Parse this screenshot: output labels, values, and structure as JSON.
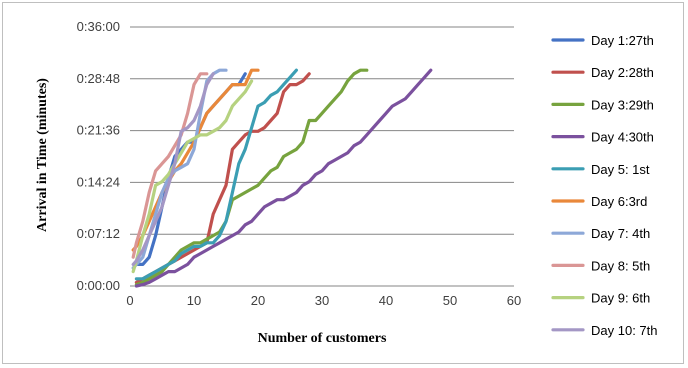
{
  "chart_data": {
    "type": "line",
    "title": "",
    "xlabel": "Number  of customers",
    "ylabel": "Arrival  in Time  (minutes)",
    "xlim": [
      0,
      60
    ],
    "xticks": [
      0,
      10,
      20,
      30,
      40,
      50,
      60
    ],
    "ylim_minutes": [
      0,
      36
    ],
    "yticks": [
      "0:00:00",
      "0:07:12",
      "0:14:24",
      "0:21:36",
      "0:28:48",
      "0:36:00"
    ],
    "y_unit": "minutes (h:mm:ss on axis)",
    "grid": "horizontal",
    "legend_position": "right",
    "series": [
      {
        "name": "Day 1:27th",
        "color": "#4472C4",
        "points": [
          [
            1,
            3
          ],
          [
            2,
            3
          ],
          [
            3,
            4
          ],
          [
            4,
            7
          ],
          [
            5,
            11
          ],
          [
            6,
            15
          ],
          [
            7,
            18
          ],
          [
            8,
            19
          ],
          [
            9,
            20
          ],
          [
            10,
            20
          ],
          [
            11,
            22
          ],
          [
            12,
            24
          ],
          [
            13,
            25
          ],
          [
            14,
            26
          ],
          [
            15,
            27
          ],
          [
            16,
            28
          ],
          [
            17,
            28
          ],
          [
            18,
            29.5
          ]
        ]
      },
      {
        "name": "Day 2:28th",
        "color": "#C0504D",
        "points": [
          [
            1,
            0.5
          ],
          [
            2,
            1
          ],
          [
            3,
            1.5
          ],
          [
            4,
            2
          ],
          [
            5,
            2.5
          ],
          [
            6,
            3
          ],
          [
            7,
            3.5
          ],
          [
            8,
            4
          ],
          [
            9,
            4.5
          ],
          [
            10,
            5
          ],
          [
            11,
            5.5
          ],
          [
            12,
            6
          ],
          [
            13,
            10
          ],
          [
            14,
            12
          ],
          [
            15,
            14
          ],
          [
            16,
            19
          ],
          [
            17,
            20
          ],
          [
            18,
            21
          ],
          [
            19,
            21.5
          ],
          [
            20,
            21.5
          ],
          [
            21,
            22
          ],
          [
            22,
            23
          ],
          [
            23,
            24
          ],
          [
            24,
            27
          ],
          [
            25,
            28
          ],
          [
            26,
            28
          ],
          [
            27,
            28.5
          ],
          [
            28,
            29.5
          ]
        ]
      },
      {
        "name": "Day 3:29th",
        "color": "#77A33E",
        "points": [
          [
            1,
            0.2
          ],
          [
            2,
            0.5
          ],
          [
            3,
            1
          ],
          [
            4,
            1.5
          ],
          [
            5,
            2
          ],
          [
            6,
            3
          ],
          [
            7,
            4
          ],
          [
            8,
            5
          ],
          [
            9,
            5.5
          ],
          [
            10,
            6
          ],
          [
            11,
            6
          ],
          [
            12,
            6.5
          ],
          [
            13,
            7
          ],
          [
            14,
            7.5
          ],
          [
            15,
            9
          ],
          [
            16,
            12
          ],
          [
            17,
            12.5
          ],
          [
            18,
            13
          ],
          [
            19,
            13.5
          ],
          [
            20,
            14
          ],
          [
            21,
            15
          ],
          [
            22,
            16
          ],
          [
            23,
            16.5
          ],
          [
            24,
            18
          ],
          [
            25,
            18.5
          ],
          [
            26,
            19
          ],
          [
            27,
            20
          ],
          [
            28,
            23
          ],
          [
            29,
            23
          ],
          [
            30,
            24
          ],
          [
            31,
            25
          ],
          [
            32,
            26
          ],
          [
            33,
            27
          ],
          [
            34,
            28.5
          ],
          [
            35,
            29.5
          ],
          [
            36,
            30
          ],
          [
            37,
            30
          ]
        ]
      },
      {
        "name": "Day 4:30th",
        "color": "#7B519E",
        "points": [
          [
            1,
            0
          ],
          [
            2,
            0.2
          ],
          [
            3,
            0.5
          ],
          [
            4,
            1
          ],
          [
            5,
            1.5
          ],
          [
            6,
            2
          ],
          [
            7,
            2
          ],
          [
            8,
            2.5
          ],
          [
            9,
            3
          ],
          [
            10,
            4
          ],
          [
            11,
            4.5
          ],
          [
            12,
            5
          ],
          [
            13,
            5.5
          ],
          [
            14,
            6
          ],
          [
            15,
            6.5
          ],
          [
            16,
            7
          ],
          [
            17,
            7.5
          ],
          [
            18,
            8.5
          ],
          [
            19,
            9
          ],
          [
            20,
            10
          ],
          [
            21,
            11
          ],
          [
            22,
            11.5
          ],
          [
            23,
            12
          ],
          [
            24,
            12
          ],
          [
            25,
            12.5
          ],
          [
            26,
            13
          ],
          [
            27,
            14
          ],
          [
            28,
            14.5
          ],
          [
            29,
            15.5
          ],
          [
            30,
            16
          ],
          [
            31,
            17
          ],
          [
            32,
            17.5
          ],
          [
            33,
            18
          ],
          [
            34,
            18.5
          ],
          [
            35,
            19.5
          ],
          [
            36,
            20
          ],
          [
            37,
            21
          ],
          [
            38,
            22
          ],
          [
            39,
            23
          ],
          [
            40,
            24
          ],
          [
            41,
            25
          ],
          [
            42,
            25.5
          ],
          [
            43,
            26
          ],
          [
            44,
            27
          ],
          [
            45,
            28
          ],
          [
            46,
            29
          ],
          [
            47,
            30
          ]
        ]
      },
      {
        "name": "Day 5: 1st",
        "color": "#3B9EB3",
        "points": [
          [
            1,
            1
          ],
          [
            2,
            1
          ],
          [
            3,
            1.5
          ],
          [
            4,
            2
          ],
          [
            5,
            2.5
          ],
          [
            6,
            3
          ],
          [
            7,
            3.5
          ],
          [
            8,
            4.5
          ],
          [
            9,
            5
          ],
          [
            10,
            5.5
          ],
          [
            11,
            5.5
          ],
          [
            12,
            6
          ],
          [
            13,
            6
          ],
          [
            14,
            7
          ],
          [
            15,
            9
          ],
          [
            16,
            13
          ],
          [
            17,
            17
          ],
          [
            18,
            19
          ],
          [
            19,
            22
          ],
          [
            20,
            25
          ],
          [
            21,
            25.5
          ],
          [
            22,
            26.5
          ],
          [
            23,
            27
          ],
          [
            24,
            28
          ],
          [
            25,
            29
          ],
          [
            26,
            30
          ]
        ]
      },
      {
        "name": "Day 6:3rd",
        "color": "#E9883A",
        "points": [
          [
            0.5,
            5
          ],
          [
            1,
            5.5
          ],
          [
            2,
            7
          ],
          [
            3,
            9
          ],
          [
            4,
            11
          ],
          [
            5,
            13
          ],
          [
            6,
            14.5
          ],
          [
            7,
            16
          ],
          [
            8,
            17
          ],
          [
            9,
            18.5
          ],
          [
            10,
            20
          ],
          [
            11,
            22
          ],
          [
            12,
            24
          ],
          [
            13,
            25
          ],
          [
            14,
            26
          ],
          [
            15,
            27
          ],
          [
            16,
            28
          ],
          [
            17,
            28
          ],
          [
            18,
            28
          ],
          [
            19,
            30
          ],
          [
            20,
            30
          ]
        ]
      },
      {
        "name": "Day 7: 4th",
        "color": "#8DA8D8",
        "points": [
          [
            0.5,
            2.5
          ],
          [
            1,
            3
          ],
          [
            2,
            4
          ],
          [
            3,
            7
          ],
          [
            4,
            10
          ],
          [
            5,
            13
          ],
          [
            6,
            15
          ],
          [
            7,
            16
          ],
          [
            8,
            16.5
          ],
          [
            9,
            17
          ],
          [
            10,
            19
          ],
          [
            11,
            24
          ],
          [
            12,
            28.5
          ],
          [
            13,
            29.5
          ],
          [
            14,
            30
          ],
          [
            15,
            30
          ]
        ]
      },
      {
        "name": "Day 8: 5th",
        "color": "#DA9695",
        "points": [
          [
            0.5,
            4
          ],
          [
            1,
            6
          ],
          [
            2,
            9
          ],
          [
            3,
            13
          ],
          [
            4,
            16
          ],
          [
            5,
            17
          ],
          [
            6,
            18
          ],
          [
            7,
            19.5
          ],
          [
            8,
            21
          ],
          [
            9,
            24
          ],
          [
            10,
            28
          ],
          [
            11,
            29.5
          ],
          [
            12,
            29.5
          ]
        ]
      },
      {
        "name": "Day 9: 6th",
        "color": "#B6D280",
        "points": [
          [
            0.5,
            2
          ],
          [
            1,
            3.5
          ],
          [
            2,
            7
          ],
          [
            3,
            10
          ],
          [
            4,
            14
          ],
          [
            5,
            14.5
          ],
          [
            6,
            15.5
          ],
          [
            7,
            17
          ],
          [
            8,
            18.5
          ],
          [
            9,
            20
          ],
          [
            10,
            20.5
          ],
          [
            11,
            21
          ],
          [
            12,
            21
          ],
          [
            13,
            21.5
          ],
          [
            14,
            22
          ],
          [
            15,
            23
          ],
          [
            16,
            25
          ],
          [
            17,
            26
          ],
          [
            18,
            27
          ],
          [
            19,
            28.5
          ]
        ]
      },
      {
        "name": "Day 10: 7th",
        "color": "#A497C5",
        "points": [
          [
            0.5,
            3
          ],
          [
            1,
            3.5
          ],
          [
            2,
            5
          ],
          [
            3,
            7
          ],
          [
            4,
            9
          ],
          [
            5,
            11
          ],
          [
            6,
            14
          ],
          [
            7,
            17
          ],
          [
            8,
            21.5
          ],
          [
            9,
            22
          ],
          [
            10,
            23
          ],
          [
            11,
            25
          ],
          [
            12,
            28
          ],
          [
            13,
            29.5
          ]
        ]
      }
    ]
  }
}
